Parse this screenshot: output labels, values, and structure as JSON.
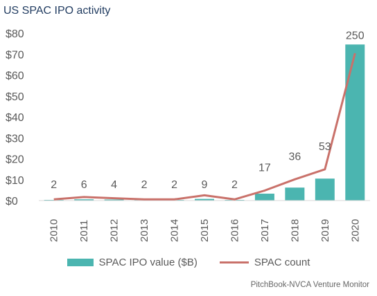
{
  "title": "US SPAC IPO activity",
  "source": "PitchBook-NVCA Venture Monitor",
  "colors": {
    "bar": "#4bb5b0",
    "line": "#c9716a",
    "axis": "#d9d9d9",
    "text": "#595959",
    "title": "#1f3a5f"
  },
  "chart_data": {
    "type": "bar",
    "title": "US SPAC IPO activity",
    "categories": [
      "2010",
      "2011",
      "2012",
      "2013",
      "2014",
      "2015",
      "2016",
      "2017",
      "2018",
      "2019",
      "2020"
    ],
    "y_tick_labels": [
      "$0",
      "$10",
      "$20",
      "$30",
      "$40",
      "$50",
      "$60",
      "$70",
      "$80"
    ],
    "ylim": [
      0,
      80
    ],
    "grid": false,
    "legend_position": "bottom",
    "series": [
      {
        "name": "SPAC IPO value ($B)",
        "type": "bar",
        "axis": "primary",
        "values": [
          0.2,
          0.6,
          0.5,
          0.1,
          0.1,
          0.8,
          0.1,
          3.3,
          6.2,
          10.5,
          74.6
        ]
      },
      {
        "name": "SPAC count",
        "type": "line",
        "axis": "secondary",
        "values": [
          2,
          6,
          4,
          2,
          2,
          9,
          2,
          17,
          36,
          53,
          250
        ]
      }
    ],
    "secondary_ylim": [
      0,
      284
    ]
  }
}
